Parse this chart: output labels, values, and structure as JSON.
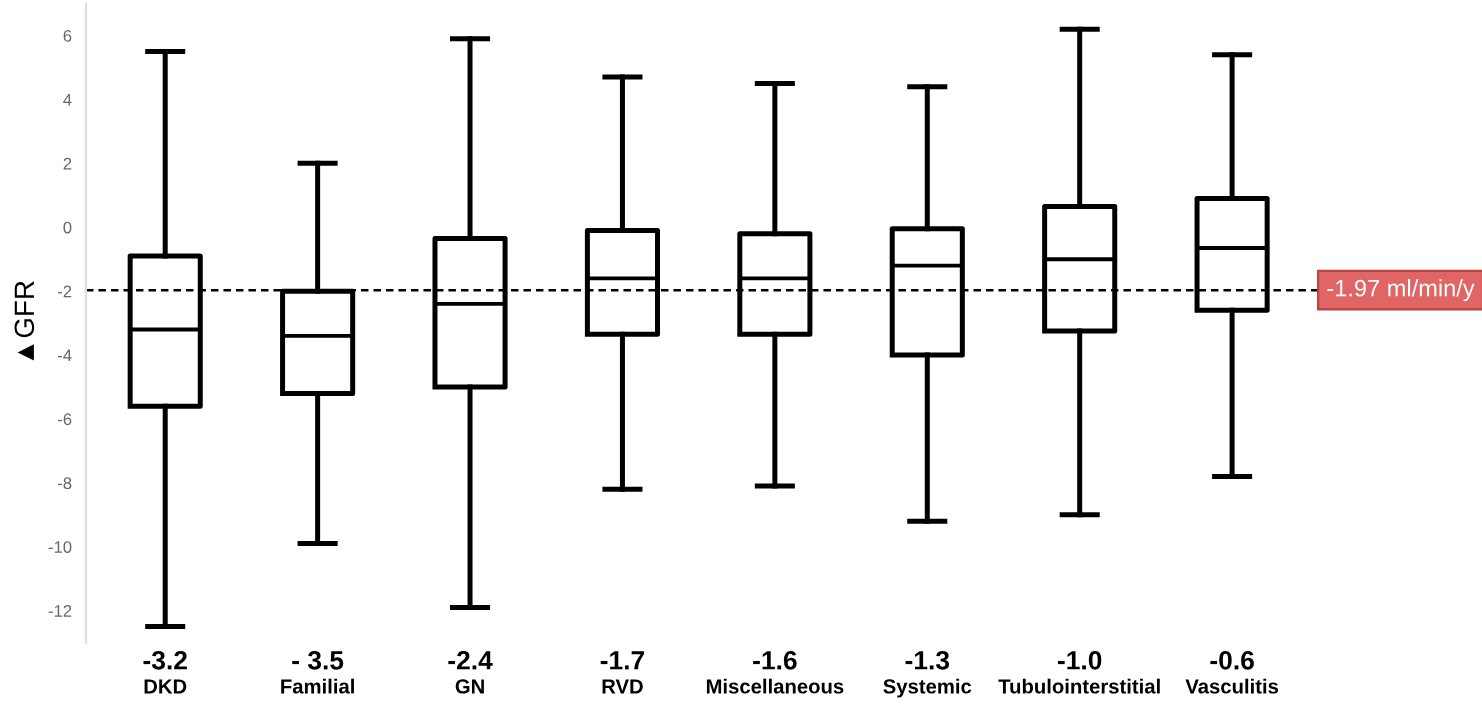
{
  "chart_data": {
    "type": "box",
    "ylabel": "▲GFR",
    "categories": [
      "DKD",
      "Familial",
      "GN",
      "RVD",
      "Miscellaneous",
      "Systemic",
      "Tubulointerstitial",
      "Vasculitis"
    ],
    "boxes": [
      {
        "low": -12.5,
        "q1": -5.6,
        "median": -3.2,
        "q3": -0.9,
        "high": 5.5
      },
      {
        "low": -9.9,
        "q1": -5.2,
        "median": -3.4,
        "q3": -2.0,
        "high": 2.0
      },
      {
        "low": -11.9,
        "q1": -5.0,
        "median": -2.4,
        "q3": -0.35,
        "high": 5.9
      },
      {
        "low": -8.2,
        "q1": -3.35,
        "median": -1.6,
        "q3": -0.1,
        "high": 4.7
      },
      {
        "low": -8.1,
        "q1": -3.35,
        "median": -1.6,
        "q3": -0.2,
        "high": 4.5
      },
      {
        "low": -9.2,
        "q1": -4.0,
        "median": -1.2,
        "q3": -0.05,
        "high": 4.4
      },
      {
        "low": -9.0,
        "q1": -3.25,
        "median": -1.0,
        "q3": 0.65,
        "high": 6.2
      },
      {
        "low": -7.8,
        "q1": -2.6,
        "median": -0.65,
        "q3": 0.9,
        "high": 5.4
      }
    ],
    "annotations": [
      "-3.2",
      "- 3.5",
      "-2.4",
      "-1.7",
      "-1.6",
      "-1.3",
      "-1.0",
      "-0.6"
    ],
    "ylim": [
      -13,
      7
    ],
    "yticks": [
      -12,
      -10,
      -8,
      -6,
      -4,
      -2,
      0,
      2,
      4,
      6
    ],
    "ref_lines": [
      {
        "axis": "y",
        "value": -1.97,
        "label": "-1.97 ml/min/y",
        "line_style": "dashed"
      }
    ],
    "grid": false,
    "legend": false
  }
}
